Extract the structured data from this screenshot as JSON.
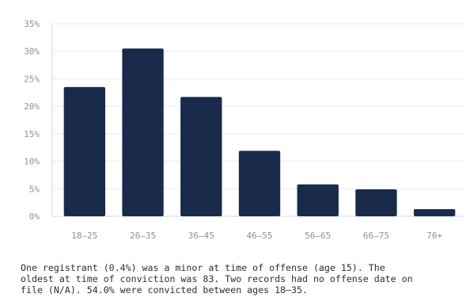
{
  "chart_data": {
    "type": "bar",
    "categories": [
      "18–25",
      "26–35",
      "36–45",
      "46–55",
      "56–65",
      "66–75",
      "76+"
    ],
    "values": [
      23.5,
      30.5,
      21.7,
      11.9,
      5.8,
      4.9,
      1.3
    ],
    "yticks": [
      "0%",
      "5%",
      "10%",
      "15%",
      "20%",
      "25%",
      "30%",
      "35%"
    ],
    "ylim": [
      0,
      35
    ],
    "grid": true,
    "colors": {
      "bar": "#1a2a4a",
      "grid": "#e6e9ef",
      "axis": "#d5d9e0",
      "tick_text": "#8a93a3"
    }
  },
  "caption": "One registrant (0.4%) was a minor at time of offense (age 15). The\noldest at time of conviction was 83. Two records had no offense date on\nfile (N/A). 54.0% were convicted between ages 18–35."
}
